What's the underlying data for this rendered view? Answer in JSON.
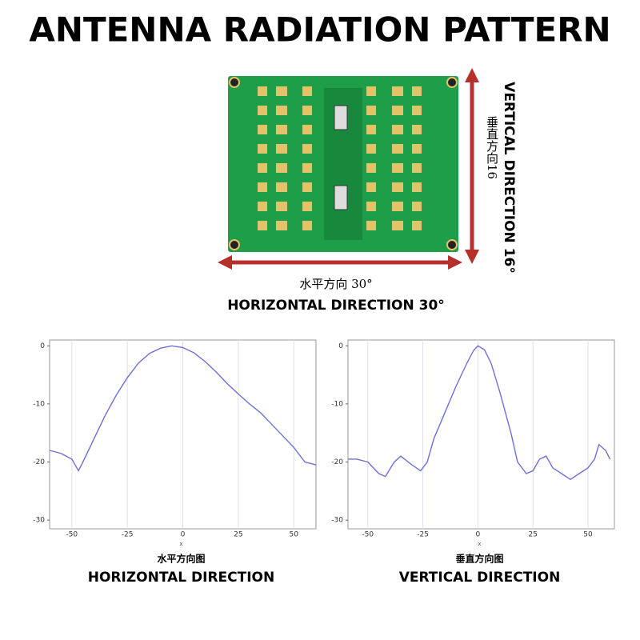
{
  "title": "ANTENNA RADIATION PATTERN",
  "photo": {
    "horizontal_cn": "水平方向 30°",
    "horizontal_en": "HORIZONTAL DIRECTION 30°",
    "vertical_cn": "垂直方向16",
    "vertical_en": "VERTICAL DIRECTION 16°"
  },
  "chart_data": [
    {
      "type": "line",
      "x_label": "x",
      "title": "水平方向图",
      "caption": "HORIZONTAL DIRECTION",
      "color": "#6f6fd6",
      "grid": true,
      "x": [
        -60,
        -55,
        -50,
        -47,
        -45,
        -40,
        -35,
        -30,
        -25,
        -20,
        -15,
        -10,
        -5,
        0,
        5,
        10,
        15,
        20,
        25,
        30,
        35,
        40,
        45,
        50,
        55,
        60
      ],
      "values": [
        -18,
        -18.5,
        -19.5,
        -21.5,
        -20,
        -16,
        -12,
        -8.5,
        -5.5,
        -3,
        -1.3,
        -0.4,
        0,
        -0.3,
        -1.2,
        -2.7,
        -4.5,
        -6.5,
        -8.3,
        -10,
        -11.5,
        -13.5,
        -15.5,
        -17.5,
        -20,
        -20.5
      ],
      "xlim": [
        -60,
        60
      ],
      "ylim": [
        -31.5,
        1
      ],
      "xticks": [
        -50,
        -25,
        0,
        25,
        50
      ],
      "yticks": [
        0,
        -10,
        -20,
        -30
      ]
    },
    {
      "type": "line",
      "x_label": "x",
      "title": "垂直方向图",
      "caption": "VERTICAL DIRECTION",
      "color": "#6f6fd6",
      "grid": true,
      "x": [
        -59,
        -55,
        -50,
        -45,
        -42,
        -38,
        -35,
        -30,
        -26,
        -23,
        -20,
        -15,
        -10,
        -5,
        -2,
        0,
        3,
        6,
        10,
        15,
        18,
        22,
        25,
        28,
        31,
        34,
        38,
        42,
        46,
        50,
        53,
        55,
        58,
        60
      ],
      "values": [
        -19.5,
        -19.5,
        -20,
        -22,
        -22.5,
        -20,
        -19,
        -20.5,
        -21.5,
        -20,
        -16,
        -11.5,
        -7,
        -3,
        -0.8,
        0,
        -0.7,
        -3,
        -8,
        -15,
        -20,
        -22,
        -21.5,
        -19.5,
        -19,
        -21,
        -22,
        -23,
        -22,
        -21,
        -19.5,
        -17,
        -18,
        -19.5
      ],
      "xlim": [
        -59,
        62
      ],
      "ylim": [
        -31.5,
        1
      ],
      "xticks": [
        -50,
        -25,
        0,
        25,
        50
      ],
      "yticks": [
        0,
        -10,
        -20,
        -30
      ]
    }
  ]
}
